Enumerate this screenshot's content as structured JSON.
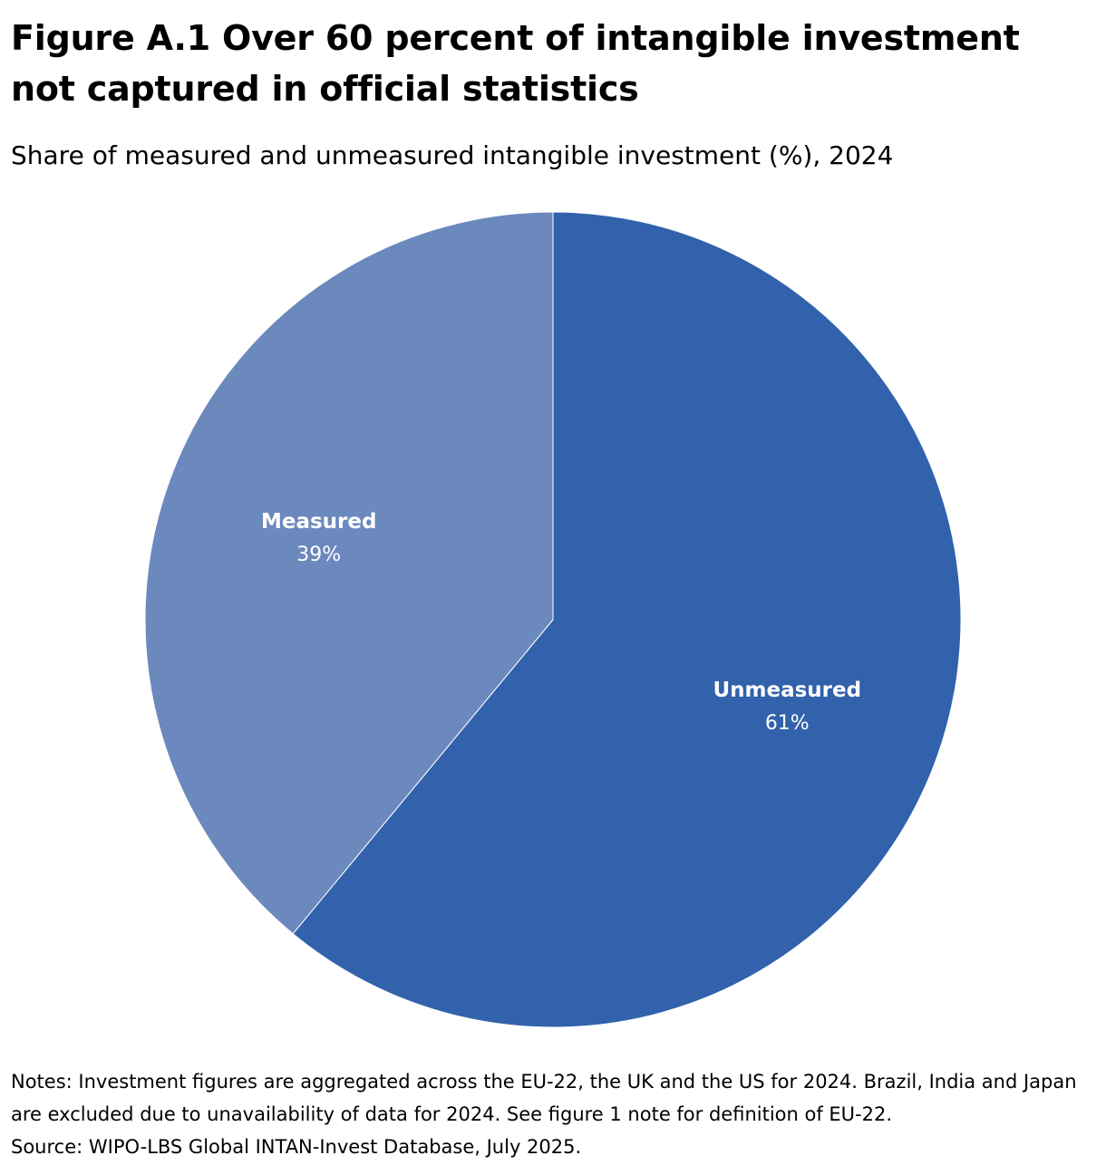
{
  "header": {
    "title": "Figure A.1 Over 60 percent of intangible investment not captured in official statistics",
    "subtitle": "Share of measured and unmeasured intangible investment (%), 2024"
  },
  "chart_data": {
    "type": "pie",
    "title": "Figure A.1 Over 60 percent of intangible investment not captured in official statistics",
    "subtitle": "Share of measured and unmeasured intangible investment (%), 2024",
    "slices": [
      {
        "name": "Unmeasured",
        "value": 61,
        "label": "61%",
        "color": "#3162ab"
      },
      {
        "name": "Measured",
        "value": 39,
        "label": "39%",
        "color": "#6b89bd"
      }
    ],
    "start": "12 o'clock",
    "direction": "clockwise",
    "legend": "none (labels inside slices)"
  },
  "footer": {
    "notes": "Notes: Investment figures are aggregated across the EU-22, the UK and the US for 2024. Brazil, India and Japan are excluded due to unavailability of data for 2024. See figure 1 note for definition of EU-22.",
    "source": "Source: WIPO-LBS Global INTAN-Invest Database, July 2025."
  }
}
